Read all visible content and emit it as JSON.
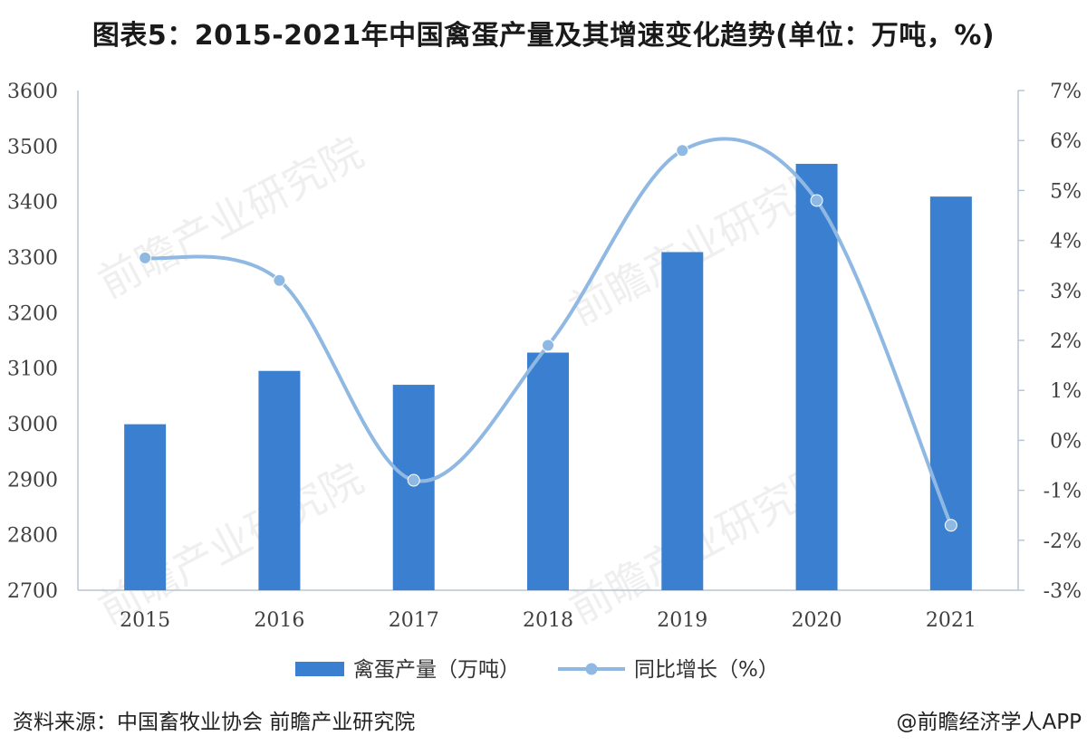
{
  "title": "图表5：2015-2021年中国禽蛋产量及其增速变化趋势(单位：万吨，%)",
  "source": "资料来源：中国畜牧业协会 前瞻产业研究院",
  "credit": "@前瞻经济学人APP",
  "watermark": "前瞻产业研究院",
  "colors": {
    "bar": "#3a7fd0",
    "line": "#8fb8e2",
    "axis": "#b8c6d4"
  },
  "chart_data": {
    "type": "bar",
    "categories": [
      "2015",
      "2016",
      "2017",
      "2018",
      "2019",
      "2020",
      "2021"
    ],
    "series": [
      {
        "name": "禽蛋产量（万吨）",
        "type": "bar",
        "axis": "left",
        "values": [
          2999,
          3095,
          3070,
          3128,
          3309,
          3468,
          3409
        ]
      },
      {
        "name": "同比增长（%）",
        "type": "line",
        "axis": "right",
        "smooth": true,
        "values": [
          3.65,
          3.2,
          -0.8,
          1.9,
          5.8,
          4.8,
          -1.7
        ]
      }
    ],
    "y_left": {
      "min": 2700,
      "max": 3600,
      "step": 100,
      "ticks": [
        "2700",
        "2800",
        "2900",
        "3000",
        "3100",
        "3200",
        "3300",
        "3400",
        "3500",
        "3600"
      ]
    },
    "y_right": {
      "min": -3,
      "max": 7,
      "step": 1,
      "ticks": [
        "-3%",
        "-2%",
        "-1%",
        "0%",
        "1%",
        "2%",
        "3%",
        "4%",
        "5%",
        "6%",
        "7%"
      ]
    },
    "grid": false,
    "legend": "bottom"
  }
}
